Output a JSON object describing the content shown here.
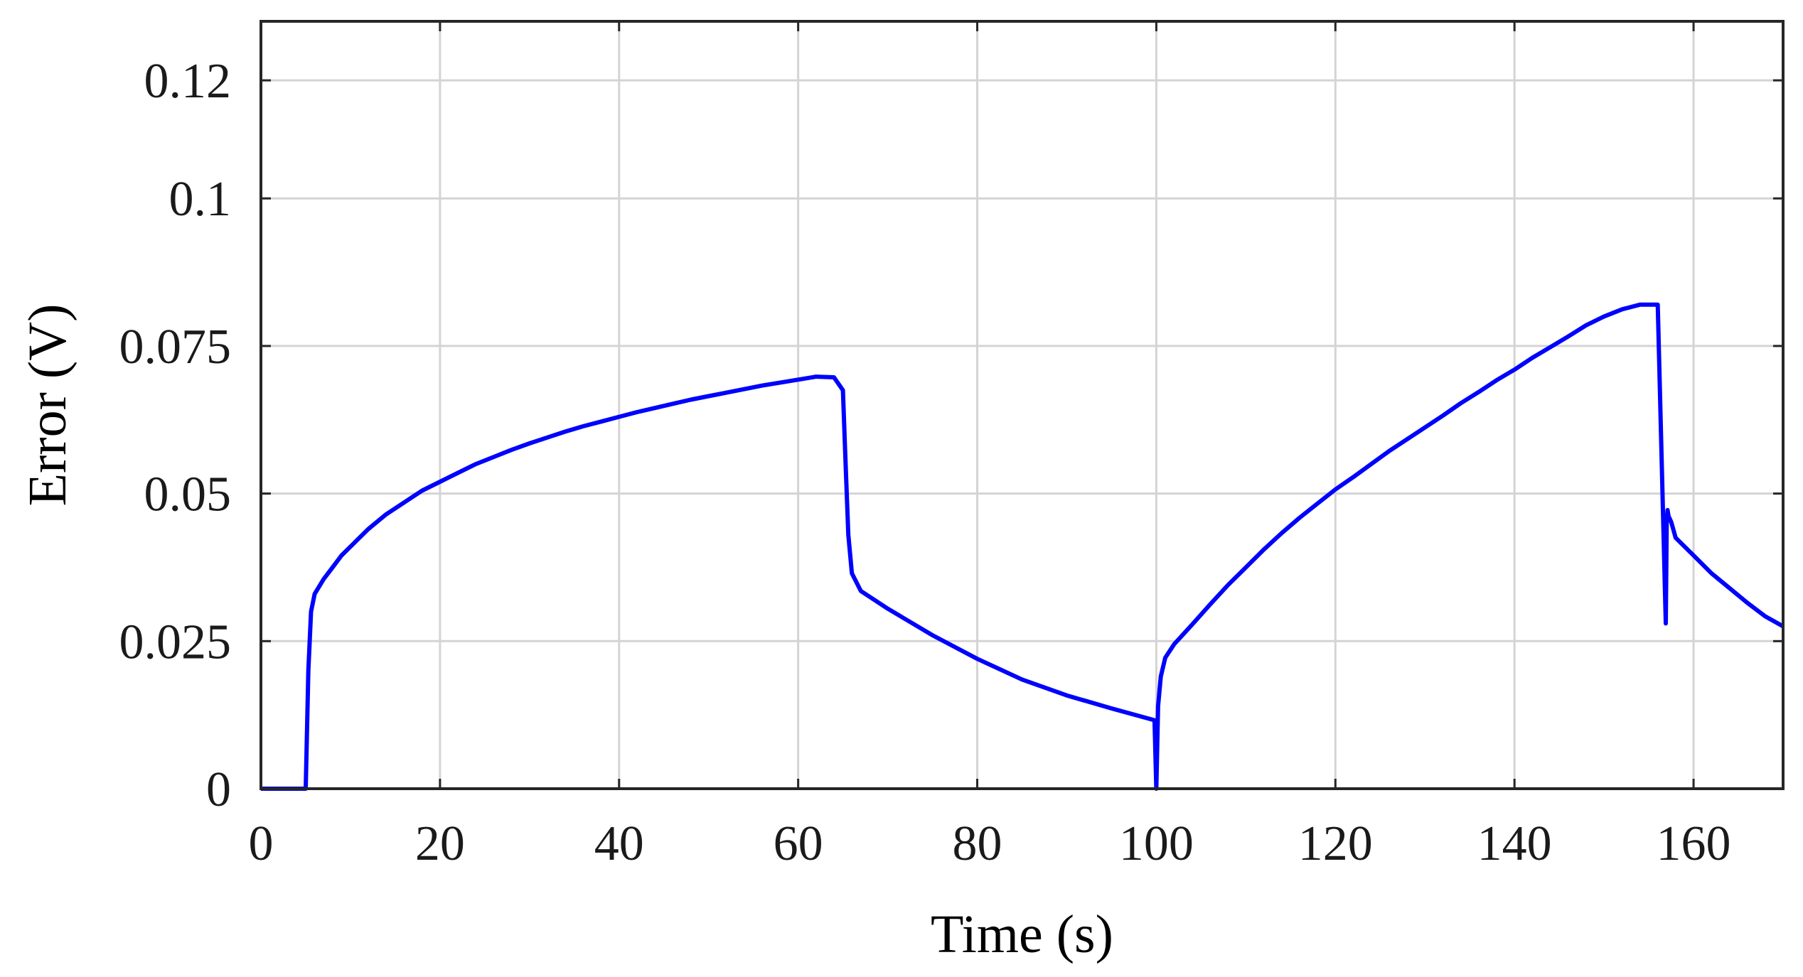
{
  "chart_data": {
    "type": "line",
    "xlabel": "Time (s)",
    "ylabel": "Error (V)",
    "xlim": [
      0,
      170
    ],
    "ylim": [
      0,
      0.13
    ],
    "xticks": [
      0,
      20,
      40,
      60,
      80,
      100,
      120,
      140,
      160
    ],
    "xtick_labels": [
      "0",
      "20",
      "40",
      "60",
      "80",
      "100",
      "120",
      "140",
      "160"
    ],
    "yticks": [
      0,
      0.025,
      0.05,
      0.075,
      0.1,
      0.12
    ],
    "ytick_labels": [
      "0",
      "0.025",
      "0.05",
      "0.075",
      "0.1",
      "0.12"
    ],
    "grid": true,
    "series": [
      {
        "color": "#0000ff",
        "x": [
          0,
          4.9,
          5,
          5.3,
          5.6,
          6,
          7,
          8,
          9,
          10,
          11,
          12,
          14,
          16,
          18,
          20,
          22,
          24,
          26,
          28,
          30,
          32,
          34,
          36,
          38,
          40,
          42,
          44,
          46,
          48,
          50,
          52,
          54,
          56,
          58,
          60,
          62,
          64,
          65,
          65.3,
          65.6,
          66,
          67,
          70,
          75,
          80,
          85,
          90,
          95,
          99.8,
          100,
          100.2,
          100.5,
          101,
          102,
          104,
          106,
          108,
          110,
          112,
          114,
          116,
          118,
          120,
          122,
          124,
          126,
          128,
          130,
          132,
          134,
          136,
          138,
          140,
          142,
          144,
          146,
          148,
          150,
          152,
          154,
          156,
          156.9,
          157,
          157.1,
          157.2,
          157.5,
          158,
          160,
          162,
          164,
          166,
          168,
          170
        ],
        "y": [
          0,
          0,
          0,
          0.02,
          0.03,
          0.033,
          0.0355,
          0.0375,
          0.0395,
          0.041,
          0.0425,
          0.044,
          0.0465,
          0.0485,
          0.0505,
          0.052,
          0.0535,
          0.055,
          0.0562,
          0.0574,
          0.0585,
          0.0595,
          0.0605,
          0.0614,
          0.0622,
          0.063,
          0.0638,
          0.0645,
          0.0652,
          0.0659,
          0.0665,
          0.0671,
          0.0677,
          0.0683,
          0.0688,
          0.0693,
          0.0698,
          0.0697,
          0.0675,
          0.055,
          0.043,
          0.0365,
          0.0335,
          0.0305,
          0.026,
          0.022,
          0.0185,
          0.0158,
          0.0136,
          0.0116,
          0.0,
          0.014,
          0.019,
          0.0222,
          0.0245,
          0.0278,
          0.0312,
          0.0345,
          0.0375,
          0.0405,
          0.0433,
          0.0459,
          0.0483,
          0.0507,
          0.0528,
          0.055,
          0.0572,
          0.0592,
          0.0612,
          0.0632,
          0.0653,
          0.0672,
          0.0692,
          0.071,
          0.073,
          0.0748,
          0.0766,
          0.0785,
          0.08,
          0.0812,
          0.082,
          0.082,
          0.028,
          0.045,
          0.0472,
          0.0462,
          0.0452,
          0.0425,
          0.0395,
          0.0365,
          0.034,
          0.0315,
          0.0292,
          0.0275
        ]
      }
    ]
  }
}
